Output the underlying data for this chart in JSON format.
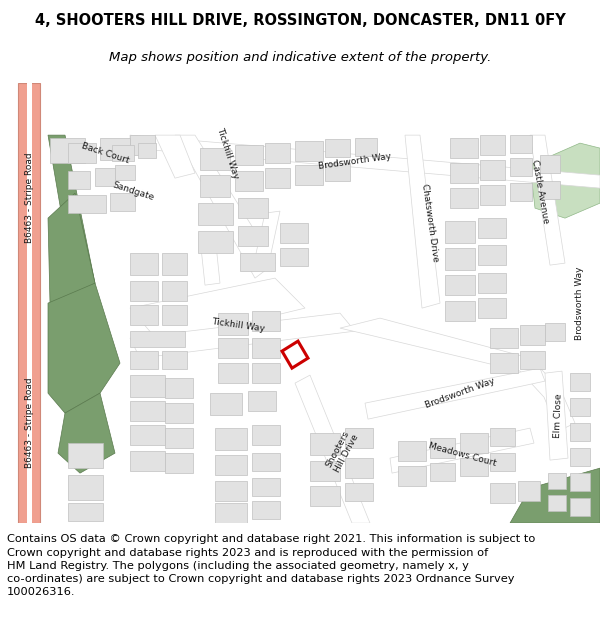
{
  "title_line1": "4, SHOOTERS HILL DRIVE, ROSSINGTON, DONCASTER, DN11 0FY",
  "title_line2": "Map shows position and indicative extent of the property.",
  "footer_text": "Contains OS data © Crown copyright and database right 2021. This information is subject to\nCrown copyright and database rights 2023 and is reproduced with the permission of\nHM Land Registry. The polygons (including the associated geometry, namely x, y\nco-ordinates) are subject to Crown copyright and database rights 2023 Ordnance Survey\n100026316.",
  "title_fontsize": 10.5,
  "subtitle_fontsize": 9.5,
  "footer_fontsize": 8.2,
  "background_color": "#ffffff",
  "map_bg": "#f5f3f0",
  "road_salmon": "#f0a090",
  "building_color": "#e2e2e2",
  "building_edge": "#c0c0c0",
  "green_dark": "#7a9e6e",
  "green_light": "#c8dfc0",
  "highlight_red": "#cc0000"
}
